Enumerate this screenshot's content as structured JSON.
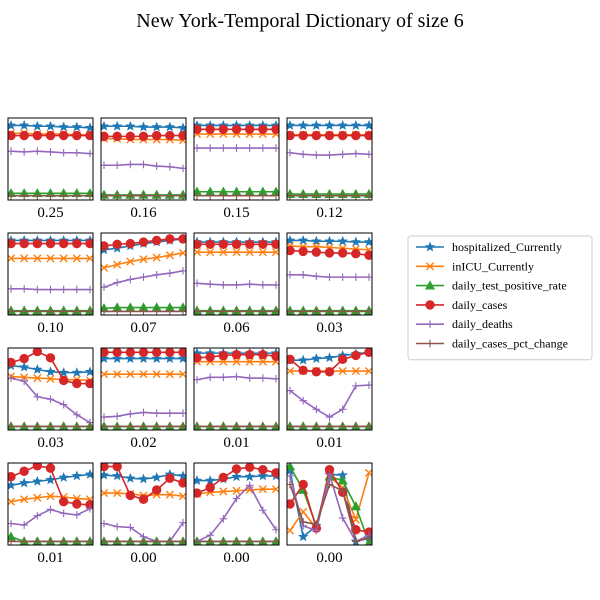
{
  "chart_data": {
    "type": "line",
    "title": "New York-Temporal Dictionary of size 6",
    "layout": {
      "rows": 4,
      "cols": 4
    },
    "legend_position": "right",
    "grid": false,
    "series": [
      {
        "name": "hospitalized_Currently",
        "color": "#1f77b4",
        "marker": "star"
      },
      {
        "name": "inICU_Currently",
        "color": "#ff7f0e",
        "marker": "x"
      },
      {
        "name": "daily_test_positive_rate",
        "color": "#2ca02c",
        "marker": "triangle"
      },
      {
        "name": "daily_cases",
        "color": "#d62728",
        "marker": "circle"
      },
      {
        "name": "daily_deaths",
        "color": "#9467bd",
        "marker": "plus"
      },
      {
        "name": "daily_cases_pct_change",
        "color": "#8c564b",
        "marker": "plus"
      }
    ],
    "ylim": [
      0,
      1
    ],
    "x": [
      0,
      1,
      2,
      3,
      4,
      5,
      6
    ],
    "panels": [
      {
        "label": "0.25",
        "values": [
          [
            0.93,
            0.93,
            0.92,
            0.92,
            0.91,
            0.91,
            0.9
          ],
          [
            0.83,
            0.83,
            0.82,
            0.82,
            0.82,
            0.81,
            0.81
          ],
          [
            0.06,
            0.06,
            0.06,
            0.06,
            0.06,
            0.06,
            0.06
          ],
          [
            0.8,
            0.8,
            0.8,
            0.8,
            0.8,
            0.8,
            0.8
          ],
          [
            0.6,
            0.59,
            0.6,
            0.59,
            0.58,
            0.58,
            0.57
          ],
          [
            0.03,
            0.03,
            0.03,
            0.03,
            0.03,
            0.03,
            0.03
          ]
        ]
      },
      {
        "label": "0.16",
        "values": [
          [
            0.92,
            0.92,
            0.92,
            0.91,
            0.91,
            0.91,
            0.9
          ],
          [
            0.76,
            0.76,
            0.75,
            0.75,
            0.75,
            0.75,
            0.74
          ],
          [
            0.04,
            0.04,
            0.04,
            0.04,
            0.04,
            0.04,
            0.04
          ],
          [
            0.79,
            0.79,
            0.79,
            0.79,
            0.8,
            0.8,
            0.8
          ],
          [
            0.42,
            0.42,
            0.43,
            0.43,
            0.41,
            0.4,
            0.38
          ],
          [
            0.03,
            0.03,
            0.03,
            0.03,
            0.03,
            0.03,
            0.03
          ]
        ]
      },
      {
        "label": "0.15",
        "values": [
          [
            0.93,
            0.93,
            0.93,
            0.93,
            0.93,
            0.93,
            0.93
          ],
          [
            0.82,
            0.82,
            0.82,
            0.82,
            0.82,
            0.82,
            0.82
          ],
          [
            0.08,
            0.08,
            0.08,
            0.08,
            0.08,
            0.08,
            0.08
          ],
          [
            0.88,
            0.88,
            0.88,
            0.88,
            0.88,
            0.88,
            0.88
          ],
          [
            0.64,
            0.64,
            0.64,
            0.64,
            0.64,
            0.64,
            0.64
          ],
          [
            0.03,
            0.03,
            0.03,
            0.03,
            0.03,
            0.03,
            0.03
          ]
        ]
      },
      {
        "label": "0.12",
        "values": [
          [
            0.93,
            0.93,
            0.93,
            0.93,
            0.93,
            0.93,
            0.93
          ],
          [
            0.81,
            0.81,
            0.81,
            0.81,
            0.81,
            0.81,
            0.81
          ],
          [
            0.05,
            0.05,
            0.05,
            0.05,
            0.05,
            0.05,
            0.05
          ],
          [
            0.8,
            0.8,
            0.8,
            0.8,
            0.8,
            0.8,
            0.8
          ],
          [
            0.58,
            0.56,
            0.55,
            0.55,
            0.56,
            0.57,
            0.56
          ],
          [
            0.03,
            0.03,
            0.03,
            0.03,
            0.03,
            0.03,
            0.03
          ]
        ]
      },
      {
        "label": "0.10",
        "values": [
          [
            0.93,
            0.93,
            0.93,
            0.93,
            0.93,
            0.93,
            0.93
          ],
          [
            0.7,
            0.7,
            0.7,
            0.7,
            0.7,
            0.7,
            0.7
          ],
          [
            0.03,
            0.03,
            0.03,
            0.03,
            0.03,
            0.03,
            0.03
          ],
          [
            0.89,
            0.89,
            0.89,
            0.89,
            0.89,
            0.89,
            0.89
          ],
          [
            0.31,
            0.31,
            0.3,
            0.3,
            0.3,
            0.3,
            0.3
          ],
          [
            0.02,
            0.02,
            0.02,
            0.02,
            0.02,
            0.02,
            0.02
          ]
        ]
      },
      {
        "label": "0.07",
        "values": [
          [
            0.81,
            0.83,
            0.86,
            0.89,
            0.91,
            0.93,
            0.95
          ],
          [
            0.58,
            0.62,
            0.66,
            0.69,
            0.71,
            0.74,
            0.77
          ],
          [
            0.06,
            0.07,
            0.07,
            0.07,
            0.07,
            0.07,
            0.07
          ],
          [
            0.86,
            0.88,
            0.89,
            0.91,
            0.93,
            0.95,
            0.95
          ],
          [
            0.33,
            0.39,
            0.43,
            0.46,
            0.49,
            0.51,
            0.54
          ],
          [
            0.02,
            0.02,
            0.02,
            0.02,
            0.02,
            0.02,
            0.02
          ]
        ]
      },
      {
        "label": "0.06",
        "values": [
          [
            0.91,
            0.91,
            0.91,
            0.91,
            0.91,
            0.91,
            0.91
          ],
          [
            0.78,
            0.78,
            0.78,
            0.78,
            0.78,
            0.78,
            0.78
          ],
          [
            0.03,
            0.03,
            0.03,
            0.03,
            0.03,
            0.03,
            0.03
          ],
          [
            0.88,
            0.88,
            0.88,
            0.88,
            0.88,
            0.88,
            0.88
          ],
          [
            0.38,
            0.37,
            0.36,
            0.36,
            0.37,
            0.36,
            0.36
          ],
          [
            0.02,
            0.02,
            0.02,
            0.02,
            0.02,
            0.02,
            0.02
          ]
        ]
      },
      {
        "label": "0.03",
        "values": [
          [
            0.93,
            0.93,
            0.92,
            0.92,
            0.92,
            0.91,
            0.91
          ],
          [
            0.86,
            0.85,
            0.85,
            0.84,
            0.83,
            0.82,
            0.81
          ],
          [
            0.03,
            0.03,
            0.03,
            0.03,
            0.03,
            0.03,
            0.03
          ],
          [
            0.8,
            0.79,
            0.78,
            0.77,
            0.77,
            0.76,
            0.74
          ],
          [
            0.49,
            0.49,
            0.47,
            0.46,
            0.46,
            0.46,
            0.46
          ],
          [
            0.02,
            0.02,
            0.02,
            0.02,
            0.02,
            0.02,
            0.02
          ]
        ]
      },
      {
        "label": "0.03",
        "values": [
          [
            0.8,
            0.78,
            0.75,
            0.72,
            0.71,
            0.71,
            0.72
          ],
          [
            0.66,
            0.65,
            0.64,
            0.63,
            0.62,
            0.62,
            0.61
          ],
          [
            0.02,
            0.02,
            0.02,
            0.02,
            0.02,
            0.02,
            0.02
          ],
          [
            0.84,
            0.89,
            0.98,
            0.9,
            0.61,
            0.57,
            0.57
          ],
          [
            0.64,
            0.6,
            0.4,
            0.37,
            0.3,
            0.17,
            0.07
          ],
          [
            0.02,
            0.02,
            0.02,
            0.02,
            0.02,
            0.02,
            0.02
          ]
        ]
      },
      {
        "label": "0.02",
        "values": [
          [
            0.89,
            0.89,
            0.89,
            0.89,
            0.89,
            0.89,
            0.89
          ],
          [
            0.69,
            0.69,
            0.69,
            0.69,
            0.69,
            0.69,
            0.69
          ],
          [
            0.02,
            0.02,
            0.02,
            0.02,
            0.02,
            0.02,
            0.02
          ],
          [
            0.97,
            0.97,
            0.97,
            0.97,
            0.97,
            0.97,
            0.97
          ],
          [
            0.14,
            0.15,
            0.18,
            0.2,
            0.19,
            0.19,
            0.19
          ],
          [
            0.02,
            0.02,
            0.02,
            0.02,
            0.02,
            0.02,
            0.02
          ]
        ]
      },
      {
        "label": "0.01",
        "values": [
          [
            0.96,
            0.96,
            0.96,
            0.96,
            0.96,
            0.96,
            0.96
          ],
          [
            0.85,
            0.85,
            0.85,
            0.85,
            0.85,
            0.85,
            0.85
          ],
          [
            0.02,
            0.02,
            0.02,
            0.02,
            0.02,
            0.02,
            0.02
          ],
          [
            0.9,
            0.91,
            0.93,
            0.94,
            0.94,
            0.94,
            0.92
          ],
          [
            0.62,
            0.65,
            0.65,
            0.66,
            0.64,
            0.64,
            0.63
          ],
          [
            0.02,
            0.02,
            0.02,
            0.02,
            0.02,
            0.02,
            0.02
          ]
        ]
      },
      {
        "label": "0.01",
        "values": [
          [
            0.87,
            0.87,
            0.89,
            0.9,
            0.93,
            0.95,
            0.97
          ],
          [
            0.73,
            0.73,
            0.73,
            0.73,
            0.73,
            0.73,
            0.73
          ],
          [
            0.02,
            0.02,
            0.02,
            0.02,
            0.02,
            0.02,
            0.02
          ],
          [
            0.88,
            0.74,
            0.72,
            0.72,
            0.88,
            0.93,
            0.97
          ],
          [
            0.48,
            0.35,
            0.24,
            0.14,
            0.24,
            0.54,
            0.55
          ],
          [
            0.02,
            0.02,
            0.02,
            0.02,
            0.02,
            0.02,
            0.02
          ]
        ]
      },
      {
        "label": "0.01",
        "values": [
          [
            0.74,
            0.77,
            0.79,
            0.81,
            0.84,
            0.86,
            0.88
          ],
          [
            0.53,
            0.56,
            0.58,
            0.6,
            0.59,
            0.57,
            0.56
          ],
          [
            0.08,
            0.02,
            0.02,
            0.02,
            0.02,
            0.02,
            0.02
          ],
          [
            0.85,
            0.92,
            0.99,
            0.96,
            0.53,
            0.5,
            0.49
          ],
          [
            0.25,
            0.23,
            0.35,
            0.43,
            0.38,
            0.36,
            0.44
          ],
          [
            0.02,
            0.02,
            0.02,
            0.02,
            0.02,
            0.02,
            0.02
          ]
        ]
      },
      {
        "label": "0.00",
        "values": [
          [
            0.87,
            0.86,
            0.83,
            0.82,
            0.84,
            0.88,
            0.86
          ],
          [
            0.64,
            0.64,
            0.63,
            0.61,
            0.62,
            0.62,
            0.6
          ],
          [
            0.02,
            0.02,
            0.02,
            0.02,
            0.02,
            0.02,
            0.02
          ],
          [
            0.98,
            0.98,
            0.61,
            0.56,
            0.68,
            0.83,
            0.77
          ],
          [
            0.25,
            0.21,
            0.2,
            0.08,
            0.02,
            0.02,
            0.26
          ],
          [
            0.02,
            0.02,
            0.02,
            0.02,
            0.02,
            0.02,
            0.02
          ]
        ]
      },
      {
        "label": "0.00",
        "values": [
          [
            0.8,
            0.8,
            0.82,
            0.85,
            0.85,
            0.86,
            0.86
          ],
          [
            0.63,
            0.65,
            0.66,
            0.67,
            0.68,
            0.69,
            0.69
          ],
          [
            0.02,
            0.02,
            0.02,
            0.02,
            0.02,
            0.02,
            0.02
          ],
          [
            0.64,
            0.71,
            0.84,
            0.95,
            0.97,
            0.94,
            0.9
          ],
          [
            0.02,
            0.1,
            0.31,
            0.57,
            0.74,
            0.42,
            0.17
          ],
          [
            0.02,
            0.02,
            0.02,
            0.02,
            0.02,
            0.02,
            0.02
          ]
        ]
      },
      {
        "label": "0.00",
        "values": [
          [
            0.93,
            0.08,
            0.22,
            0.88,
            0.87,
            0.02,
            0.07
          ],
          [
            0.16,
            0.4,
            0.19,
            0.85,
            0.71,
            0.3,
            0.9
          ],
          [
            0.98,
            0.68,
            0.22,
            0.85,
            0.8,
            0.47,
            0.0
          ],
          [
            0.5,
            0.75,
            0.19,
            0.94,
            0.65,
            0.17,
            0.14
          ],
          [
            0.86,
            0.22,
            0.16,
            0.88,
            0.32,
            0.02,
            0.1
          ],
          [
            0.75,
            0.27,
            0.24,
            0.75,
            0.67,
            0.02,
            0.06
          ]
        ]
      }
    ]
  }
}
